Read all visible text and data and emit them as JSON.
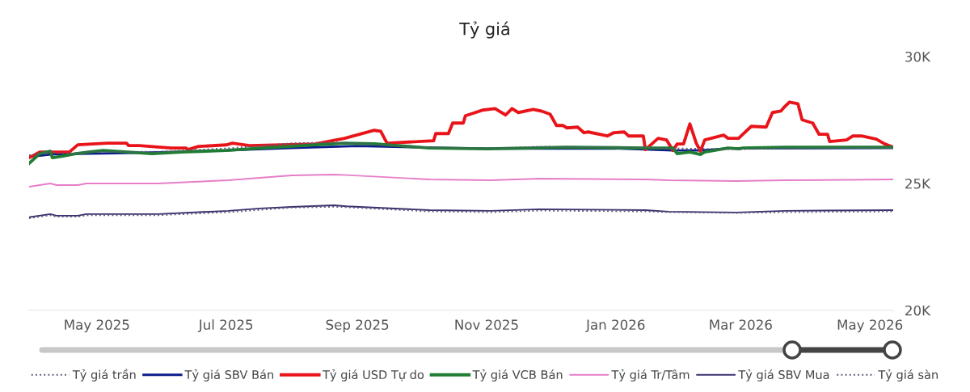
{
  "chart_data": {
    "type": "line",
    "title": "Tỷ giá",
    "xlim": [
      "2025-03-30",
      "2026-05-12"
    ],
    "xticks": [
      {
        "value": "2025-05-01",
        "label": "May 2025"
      },
      {
        "value": "2025-07-01",
        "label": "Jul 2025"
      },
      {
        "value": "2025-09-01",
        "label": "Sep 2025"
      },
      {
        "value": "2025-11-01",
        "label": "Nov 2025"
      },
      {
        "value": "2026-01-01",
        "label": "Jan 2026"
      },
      {
        "value": "2026-03-01",
        "label": "Mar 2026"
      },
      {
        "value": "2026-05-01",
        "label": "May 2026"
      }
    ],
    "ylim": [
      20000,
      30000
    ],
    "yticks": [
      {
        "value": 20000,
        "label": "20K"
      },
      {
        "value": 25000,
        "label": "25K"
      },
      {
        "value": 30000,
        "label": "30K"
      }
    ],
    "grid": false,
    "legend": "bottom",
    "marker": "none",
    "series": [
      {
        "name": "Tỷ giá trần",
        "color": "#5b5b7a",
        "line_style": "dotted",
        "x": [
          "2025-03-30",
          "2025-04-09",
          "2025-04-12",
          "2025-04-22",
          "2025-04-26",
          "2025-05-30",
          "2025-07-02",
          "2025-07-17",
          "2025-08-01",
          "2025-08-21",
          "2025-08-27",
          "2025-10-05",
          "2025-11-03",
          "2025-11-26",
          "2026-01-15",
          "2026-01-26",
          "2026-02-27",
          "2026-03-22",
          "2026-05-12"
        ],
        "values": [
          26117,
          26250,
          26184,
          26184,
          26250,
          26250,
          26383,
          26483,
          26583,
          26616,
          26597,
          26417,
          26383,
          26450,
          26417,
          26383,
          26350,
          26383,
          26417
        ]
      },
      {
        "name": "Tỷ giá SBV Bán",
        "color": "#0d1b8c",
        "line_style": "solid",
        "x": [
          "2025-03-30",
          "2025-04-10",
          "2025-05-15",
          "2025-07-01",
          "2025-08-01",
          "2025-09-01",
          "2025-10-01",
          "2025-11-01",
          "2026-01-01",
          "2026-01-28",
          "2026-02-10",
          "2026-02-23",
          "2026-05-12"
        ],
        "values": [
          26048,
          26150,
          26200,
          26300,
          26400,
          26480,
          26420,
          26370,
          26380,
          26302,
          26302,
          26380,
          26400
        ]
      },
      {
        "name": "Tỷ giá USD Tự do",
        "color": "#e8141a",
        "line_style": "solid",
        "x": [
          "2025-03-30",
          "2025-04-04",
          "2025-04-18",
          "2025-04-22",
          "2025-05-06",
          "2025-05-15",
          "2025-05-16",
          "2025-05-21",
          "2025-06-05",
          "2025-06-12",
          "2025-06-13",
          "2025-06-18",
          "2025-07-01",
          "2025-07-04",
          "2025-07-12",
          "2025-08-12",
          "2025-08-26",
          "2025-09-09",
          "2025-09-12",
          "2025-09-15",
          "2025-10-07",
          "2025-10-08",
          "2025-10-14",
          "2025-10-16",
          "2025-10-21",
          "2025-10-22",
          "2025-10-30",
          "2025-11-05",
          "2025-11-10",
          "2025-11-13",
          "2025-11-16",
          "2025-11-23",
          "2025-11-27",
          "2025-12-01",
          "2025-12-04",
          "2025-12-07",
          "2025-12-09",
          "2025-12-14",
          "2025-12-17",
          "2025-12-19",
          "2025-12-28",
          "2025-12-31",
          "2026-01-05",
          "2026-01-07",
          "2026-01-14",
          "2026-01-15",
          "2026-01-21",
          "2026-01-25",
          "2026-01-28",
          "2026-01-30",
          "2026-02-02",
          "2026-02-05",
          "2026-02-08",
          "2026-02-10",
          "2026-02-12",
          "2026-02-21",
          "2026-02-23",
          "2026-02-28",
          "2026-03-02",
          "2026-03-06",
          "2026-03-13",
          "2026-03-16",
          "2026-03-20",
          "2026-03-22",
          "2026-03-24",
          "2026-03-28",
          "2026-03-30",
          "2026-04-04",
          "2026-04-07",
          "2026-04-11",
          "2026-04-12",
          "2026-04-20",
          "2026-04-23",
          "2026-04-27",
          "2026-05-04",
          "2026-05-08",
          "2026-05-12"
        ],
        "values": [
          26016,
          26238,
          26238,
          26524,
          26587,
          26587,
          26492,
          26492,
          26397,
          26397,
          26333,
          26460,
          26520,
          26587,
          26492,
          26556,
          26778,
          27095,
          27060,
          26587,
          26683,
          26968,
          26968,
          27381,
          27381,
          27667,
          27889,
          27952,
          27699,
          27952,
          27794,
          27921,
          27850,
          27730,
          27286,
          27286,
          27190,
          27220,
          27000,
          27030,
          26873,
          27000,
          27032,
          26873,
          26873,
          26333,
          26778,
          26714,
          26302,
          26556,
          26556,
          27349,
          26587,
          26270,
          26714,
          26905,
          26778,
          26778,
          26937,
          27254,
          27222,
          27794,
          27857,
          28048,
          28207,
          28143,
          27508,
          27381,
          26937,
          26937,
          26651,
          26714,
          26873,
          26873,
          26746,
          26556,
          26429
        ]
      },
      {
        "name": "Tỷ giá VCB Bán",
        "color": "#1e7d32",
        "line_style": "solid",
        "x": [
          "2025-03-30",
          "2025-04-04",
          "2025-04-09",
          "2025-04-10",
          "2025-04-15",
          "2025-04-21",
          "2025-04-27",
          "2025-05-04",
          "2025-05-27",
          "2025-06-10",
          "2025-07-01",
          "2025-07-12",
          "2025-08-06",
          "2025-08-26",
          "2025-09-09",
          "2025-09-20",
          "2025-10-05",
          "2025-11-01",
          "2025-12-09",
          "2026-01-15",
          "2026-01-28",
          "2026-01-30",
          "2026-02-05",
          "2026-02-10",
          "2026-02-12",
          "2026-02-23",
          "2026-02-28",
          "2026-03-02",
          "2026-03-22",
          "2026-05-12"
        ],
        "values": [
          25794,
          26175,
          26270,
          26016,
          26080,
          26175,
          26238,
          26302,
          26175,
          26240,
          26300,
          26365,
          26492,
          26587,
          26560,
          26492,
          26397,
          26365,
          26429,
          26397,
          26397,
          26175,
          26238,
          26143,
          26238,
          26397,
          26365,
          26397,
          26429,
          26429
        ]
      },
      {
        "name": "Tỷ giá Tr/Tâm",
        "color": "#e67ec8",
        "line_style": "solid",
        "x": [
          "2025-03-30",
          "2025-04-09",
          "2025-04-12",
          "2025-04-22",
          "2025-04-26",
          "2025-05-30",
          "2025-07-02",
          "2025-07-17",
          "2025-08-01",
          "2025-08-21",
          "2025-08-27",
          "2025-10-05",
          "2025-11-03",
          "2025-11-26",
          "2026-01-15",
          "2026-01-26",
          "2026-02-27",
          "2026-03-22",
          "2026-05-12"
        ],
        "values": [
          24873,
          25000,
          24937,
          24937,
          25000,
          25000,
          25127,
          25222,
          25317,
          25349,
          25330,
          25159,
          25127,
          25190,
          25159,
          25127,
          25095,
          25127,
          25159
        ]
      },
      {
        "name": "Tỷ giá SBV Mua",
        "color": "#3d2f6e",
        "line_style": "solid",
        "x": [
          "2025-03-30",
          "2025-04-09",
          "2025-04-12",
          "2025-04-22",
          "2025-04-26",
          "2025-05-30",
          "2025-07-02",
          "2025-07-17",
          "2025-08-01",
          "2025-08-21",
          "2025-08-27",
          "2025-10-05",
          "2025-11-03",
          "2025-11-26",
          "2026-01-15",
          "2026-01-26",
          "2026-02-27",
          "2026-03-22",
          "2026-05-12"
        ],
        "values": [
          23667,
          23794,
          23730,
          23730,
          23794,
          23794,
          23921,
          24016,
          24079,
          24143,
          24100,
          23952,
          23921,
          23984,
          23952,
          23889,
          23857,
          23921,
          23952
        ]
      },
      {
        "name": "Tỷ giá sàn",
        "color": "#5b5b7a",
        "line_style": "dotted",
        "x": [
          "2025-03-30",
          "2025-04-09",
          "2025-04-12",
          "2025-04-22",
          "2025-04-26",
          "2025-05-30",
          "2025-07-02",
          "2025-07-17",
          "2025-08-01",
          "2025-08-21",
          "2025-08-27",
          "2025-10-05",
          "2025-11-03",
          "2025-11-26",
          "2026-01-15",
          "2026-01-26",
          "2026-02-27",
          "2026-03-22",
          "2026-05-12"
        ],
        "values": [
          23629,
          23750,
          23690,
          23690,
          23750,
          23750,
          23871,
          23961,
          24051,
          24082,
          24064,
          23901,
          23871,
          23931,
          23901,
          23871,
          23840,
          23871,
          23901
        ]
      }
    ]
  }
}
